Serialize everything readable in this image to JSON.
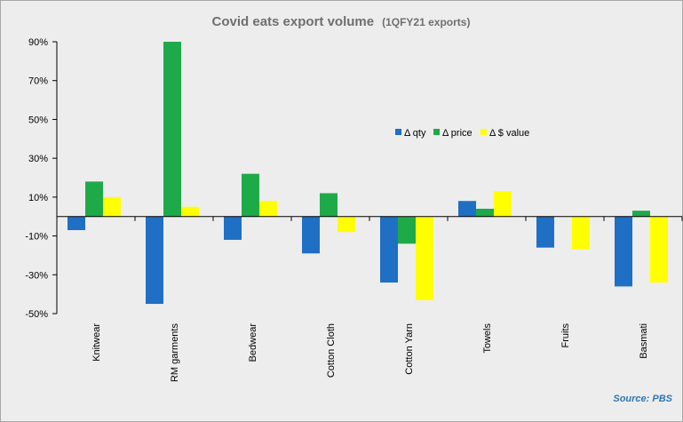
{
  "chart_data": {
    "type": "bar",
    "title": "Covid eats export volume",
    "subtitle": "(1QFY21  exports)",
    "categories": [
      "Knitwear",
      "RM garments",
      "Bedwear",
      "Cotton Cloth",
      "Cotton Yarn",
      "Towels",
      "Fruits",
      "Basmati"
    ],
    "series": [
      {
        "name": "Δ qty",
        "color": "#1f6fc5",
        "values": [
          -7,
          -45,
          -12,
          -19,
          -34,
          8,
          -16,
          -36
        ]
      },
      {
        "name": "Δ price",
        "color": "#1faa4a",
        "values": [
          18,
          90,
          22,
          12,
          -14,
          4,
          0,
          3
        ]
      },
      {
        "name": "Δ $ value",
        "color": "#ffff00",
        "values": [
          10,
          5,
          8,
          -8,
          -43,
          13,
          -17,
          -34
        ]
      }
    ],
    "ylim": [
      -50,
      90
    ],
    "yticks": [
      -50,
      -30,
      -10,
      10,
      30,
      50,
      70,
      90
    ],
    "ytick_labels": [
      "-50%",
      "-30%",
      "-10%",
      "10%",
      "30%",
      "50%",
      "70%",
      "90%"
    ],
    "legend_position": "center-right",
    "grid": false,
    "source": "Source: PBS"
  }
}
